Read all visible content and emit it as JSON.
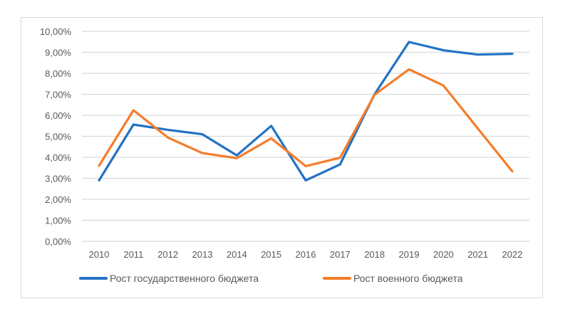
{
  "chart_data": {
    "type": "line",
    "title": "",
    "xlabel": "",
    "ylabel": "",
    "categories": [
      "2010",
      "2011",
      "2012",
      "2013",
      "2014",
      "2015",
      "2016",
      "2017",
      "2018",
      "2019",
      "2020",
      "2021",
      "2022"
    ],
    "series": [
      {
        "name": "Рост государственного бюджета",
        "color": "#2372C4",
        "values": [
          2.9,
          5.56,
          5.31,
          5.1,
          4.09,
          5.5,
          2.9,
          3.66,
          7.0,
          9.49,
          9.1,
          8.89,
          8.93
        ]
      },
      {
        "name": "Рост военного бюджета",
        "color": "#F57C2A",
        "values": [
          3.6,
          6.24,
          4.94,
          4.2,
          3.96,
          4.9,
          3.58,
          3.98,
          6.98,
          8.19,
          7.42,
          5.37,
          3.33
        ]
      }
    ],
    "ylim": [
      0,
      10
    ],
    "yticks": [
      "0,00%",
      "1,00%",
      "2,00%",
      "3,00%",
      "4,00%",
      "5,00%",
      "6,00%",
      "7,00%",
      "8,00%",
      "9,00%",
      "10,00%"
    ],
    "grid": true,
    "legend_position": "bottom"
  },
  "colors": {
    "grid": "#d9d9d9",
    "frame": "#d9d9d9",
    "text": "#595959"
  }
}
